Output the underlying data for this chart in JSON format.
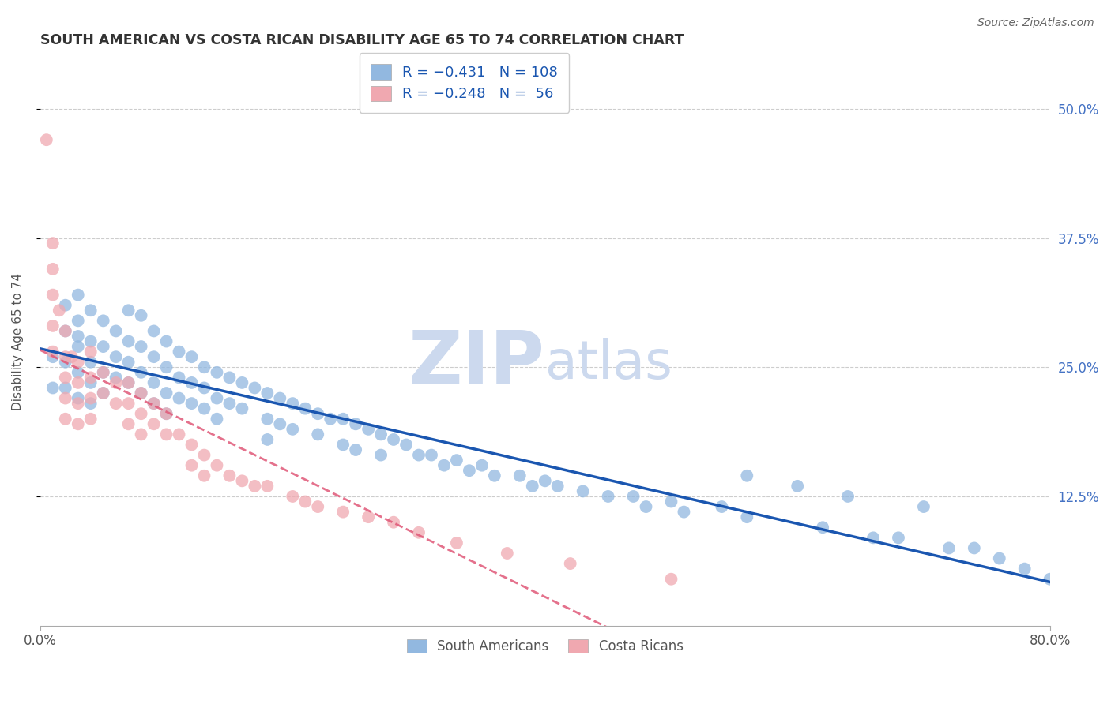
{
  "title": "SOUTH AMERICAN VS COSTA RICAN DISABILITY AGE 65 TO 74 CORRELATION CHART",
  "source": "Source: ZipAtlas.com",
  "ylabel": "Disability Age 65 to 74",
  "xlim": [
    0.0,
    0.8
  ],
  "ylim": [
    0.0,
    0.55
  ],
  "ytick_labels_right": [
    "50.0%",
    "37.5%",
    "25.0%",
    "12.5%"
  ],
  "ytick_values_right": [
    0.5,
    0.375,
    0.25,
    0.125
  ],
  "blue_color": "#92b8e0",
  "pink_color": "#f0a8b0",
  "blue_line_color": "#1a56b0",
  "pink_line_color": "#e05878",
  "blue_scatter_x": [
    0.01,
    0.01,
    0.02,
    0.02,
    0.02,
    0.02,
    0.03,
    0.03,
    0.03,
    0.03,
    0.03,
    0.03,
    0.04,
    0.04,
    0.04,
    0.04,
    0.04,
    0.05,
    0.05,
    0.05,
    0.05,
    0.06,
    0.06,
    0.06,
    0.07,
    0.07,
    0.07,
    0.07,
    0.08,
    0.08,
    0.08,
    0.08,
    0.09,
    0.09,
    0.09,
    0.09,
    0.1,
    0.1,
    0.1,
    0.1,
    0.11,
    0.11,
    0.11,
    0.12,
    0.12,
    0.12,
    0.13,
    0.13,
    0.13,
    0.14,
    0.14,
    0.14,
    0.15,
    0.15,
    0.16,
    0.16,
    0.17,
    0.18,
    0.18,
    0.18,
    0.19,
    0.19,
    0.2,
    0.2,
    0.21,
    0.22,
    0.22,
    0.23,
    0.24,
    0.24,
    0.25,
    0.25,
    0.26,
    0.27,
    0.27,
    0.28,
    0.29,
    0.3,
    0.31,
    0.32,
    0.33,
    0.34,
    0.35,
    0.36,
    0.38,
    0.39,
    0.4,
    0.41,
    0.43,
    0.45,
    0.47,
    0.48,
    0.5,
    0.51,
    0.54,
    0.56,
    0.62,
    0.66,
    0.68,
    0.72,
    0.74,
    0.76,
    0.78,
    0.8,
    0.56,
    0.6,
    0.64,
    0.7
  ],
  "blue_scatter_y": [
    0.26,
    0.23,
    0.31,
    0.285,
    0.255,
    0.23,
    0.32,
    0.295,
    0.27,
    0.245,
    0.22,
    0.28,
    0.305,
    0.275,
    0.255,
    0.235,
    0.215,
    0.295,
    0.27,
    0.245,
    0.225,
    0.285,
    0.26,
    0.24,
    0.305,
    0.275,
    0.255,
    0.235,
    0.3,
    0.27,
    0.245,
    0.225,
    0.285,
    0.26,
    0.235,
    0.215,
    0.275,
    0.25,
    0.225,
    0.205,
    0.265,
    0.24,
    0.22,
    0.26,
    0.235,
    0.215,
    0.25,
    0.23,
    0.21,
    0.245,
    0.22,
    0.2,
    0.24,
    0.215,
    0.235,
    0.21,
    0.23,
    0.225,
    0.2,
    0.18,
    0.22,
    0.195,
    0.215,
    0.19,
    0.21,
    0.205,
    0.185,
    0.2,
    0.2,
    0.175,
    0.195,
    0.17,
    0.19,
    0.185,
    0.165,
    0.18,
    0.175,
    0.165,
    0.165,
    0.155,
    0.16,
    0.15,
    0.155,
    0.145,
    0.145,
    0.135,
    0.14,
    0.135,
    0.13,
    0.125,
    0.125,
    0.115,
    0.12,
    0.11,
    0.115,
    0.105,
    0.095,
    0.085,
    0.085,
    0.075,
    0.075,
    0.065,
    0.055,
    0.045,
    0.145,
    0.135,
    0.125,
    0.115
  ],
  "pink_scatter_x": [
    0.005,
    0.01,
    0.01,
    0.01,
    0.01,
    0.01,
    0.015,
    0.02,
    0.02,
    0.02,
    0.02,
    0.02,
    0.025,
    0.03,
    0.03,
    0.03,
    0.03,
    0.04,
    0.04,
    0.04,
    0.04,
    0.05,
    0.05,
    0.06,
    0.06,
    0.07,
    0.07,
    0.07,
    0.08,
    0.08,
    0.08,
    0.09,
    0.09,
    0.1,
    0.1,
    0.11,
    0.12,
    0.12,
    0.13,
    0.13,
    0.14,
    0.15,
    0.16,
    0.17,
    0.18,
    0.2,
    0.21,
    0.22,
    0.24,
    0.26,
    0.28,
    0.3,
    0.33,
    0.37,
    0.42,
    0.5
  ],
  "pink_scatter_y": [
    0.47,
    0.37,
    0.345,
    0.32,
    0.29,
    0.265,
    0.305,
    0.285,
    0.26,
    0.24,
    0.22,
    0.2,
    0.26,
    0.255,
    0.235,
    0.215,
    0.195,
    0.265,
    0.24,
    0.22,
    0.2,
    0.245,
    0.225,
    0.235,
    0.215,
    0.235,
    0.215,
    0.195,
    0.225,
    0.205,
    0.185,
    0.215,
    0.195,
    0.205,
    0.185,
    0.185,
    0.175,
    0.155,
    0.165,
    0.145,
    0.155,
    0.145,
    0.14,
    0.135,
    0.135,
    0.125,
    0.12,
    0.115,
    0.11,
    0.105,
    0.1,
    0.09,
    0.08,
    0.07,
    0.06,
    0.045
  ],
  "background_color": "#ffffff",
  "grid_color": "#c8c8c8",
  "title_color": "#333333",
  "axis_label_color": "#555555",
  "right_tick_color": "#4472c4",
  "watermark_zip": "ZIP",
  "watermark_atlas": "atlas",
  "watermark_color": "#ccd9ee"
}
